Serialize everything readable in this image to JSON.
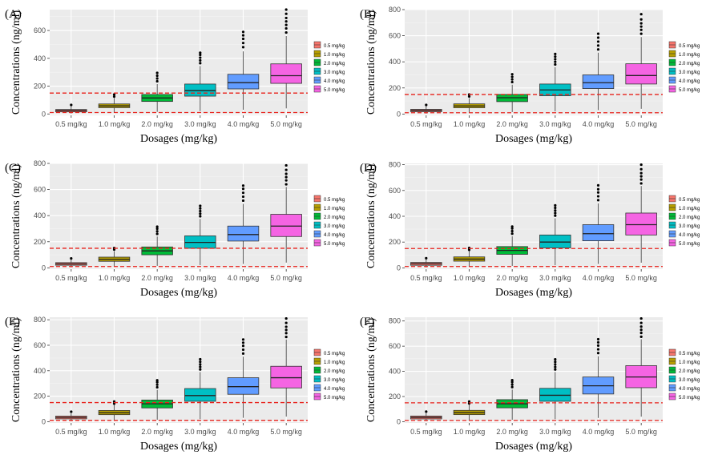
{
  "figure": {
    "colors": {
      "panel_bg": "#ebebeb",
      "grid_major": "#ffffff",
      "grid_minor": "#f4f4f4",
      "ref_line": "#e8211b",
      "axis_text": "#4d4d4d",
      "title_text": "#000000",
      "outlier": "#000000",
      "series": [
        "#f8766d",
        "#b79f00",
        "#00ba38",
        "#00bfc4",
        "#619cff",
        "#f564e3"
      ]
    },
    "legend_position": "right"
  },
  "chart_data": [
    {
      "panel_label": "(A)",
      "type": "boxplot",
      "xlabel": "Dosages (mg/kg)",
      "ylabel": "Concentrations (ng/ml)",
      "categories": [
        "0.5 mg/kg",
        "1.0 mg/kg",
        "2.0 mg/kg",
        "3.0 mg/kg",
        "4.0 mg/kg",
        "5.0 mg/kg"
      ],
      "legend": [
        "0.5 mg/kg",
        "1.0 mg/kg",
        "2.0 mg/kg",
        "3.0 mg/kg",
        "4.0 mg/kg",
        "5.0 mg/kg"
      ],
      "ylim": [
        -10,
        750
      ],
      "yticks": [
        0,
        200,
        400,
        600
      ],
      "reference_lines": [
        10,
        150
      ],
      "boxes": [
        {
          "min": 3,
          "q1": 15,
          "median": 25,
          "q3": 32,
          "max": 55
        },
        {
          "min": 10,
          "q1": 45,
          "median": 58,
          "q3": 72,
          "max": 115
        },
        {
          "min": 15,
          "q1": 90,
          "median": 115,
          "q3": 140,
          "max": 215
        },
        {
          "min": 20,
          "q1": 128,
          "median": 168,
          "q3": 215,
          "max": 345
        },
        {
          "min": 30,
          "q1": 180,
          "median": 225,
          "q3": 285,
          "max": 450
        },
        {
          "min": 40,
          "q1": 220,
          "median": 275,
          "q3": 360,
          "max": 560
        }
      ],
      "outliers": [
        [
          65
        ],
        [
          125,
          140
        ],
        [
          235,
          255,
          275,
          295
        ],
        [
          365,
          385,
          405,
          425,
          440
        ],
        [
          480,
          510,
          540,
          565,
          590
        ],
        [
          585,
          615,
          640,
          665,
          690,
          720,
          750
        ]
      ]
    },
    {
      "panel_label": "(B)",
      "type": "boxplot",
      "xlabel": "Dosages (mg/kg)",
      "ylabel": "Concentrations (ng/ml)",
      "categories": [
        "0.5 mg/kg",
        "1.0 mg/kg",
        "2.0 mg/kg",
        "3.0 mg/kg",
        "4.0 mg/kg",
        "5.0 mg/kg"
      ],
      "legend": [
        "0.5 mg/kg",
        "1.0 mg/kg",
        "2.0 mg/kg",
        "3.0 mg/kg",
        "4.0 mg/kg",
        "5.0 mg/kg"
      ],
      "ylim": [
        -10,
        800
      ],
      "yticks": [
        0,
        200,
        400,
        600,
        800
      ],
      "reference_lines": [
        10,
        150
      ],
      "boxes": [
        {
          "min": 3,
          "q1": 18,
          "median": 28,
          "q3": 36,
          "max": 60
        },
        {
          "min": 10,
          "q1": 48,
          "median": 62,
          "q3": 78,
          "max": 122
        },
        {
          "min": 15,
          "q1": 95,
          "median": 125,
          "q3": 150,
          "max": 225
        },
        {
          "min": 20,
          "q1": 140,
          "median": 185,
          "q3": 230,
          "max": 360
        },
        {
          "min": 30,
          "q1": 195,
          "median": 240,
          "q3": 300,
          "max": 470
        },
        {
          "min": 40,
          "q1": 230,
          "median": 295,
          "q3": 385,
          "max": 590
        }
      ],
      "outliers": [
        [
          70
        ],
        [
          135,
          150
        ],
        [
          245,
          265,
          285,
          305
        ],
        [
          380,
          400,
          420,
          440,
          460
        ],
        [
          495,
          525,
          555,
          585,
          615
        ],
        [
          615,
          645,
          670,
          695,
          725,
          765
        ]
      ]
    },
    {
      "panel_label": "(C)",
      "type": "boxplot",
      "xlabel": "Dosages (mg/kg)",
      "ylabel": "Concentrations (ng/ml)",
      "categories": [
        "0.5 mg/kg",
        "1.0 mg/kg",
        "2.0 mg/kg",
        "3.0 mg/kg",
        "4.0 mg/kg",
        "5.0 mg/kg"
      ],
      "legend": [
        "0.5 mg/kg",
        "1.0 mg/kg",
        "2.0 mg/kg",
        "3.0 mg/kg",
        "4.0 mg/kg",
        "5.0 mg/kg"
      ],
      "ylim": [
        -10,
        800
      ],
      "yticks": [
        0,
        200,
        400,
        600,
        800
      ],
      "reference_lines": [
        10,
        150
      ],
      "boxes": [
        {
          "min": 3,
          "q1": 20,
          "median": 30,
          "q3": 40,
          "max": 62
        },
        {
          "min": 10,
          "q1": 50,
          "median": 65,
          "q3": 82,
          "max": 128
        },
        {
          "min": 15,
          "q1": 100,
          "median": 130,
          "q3": 160,
          "max": 240
        },
        {
          "min": 20,
          "q1": 150,
          "median": 195,
          "q3": 245,
          "max": 375
        },
        {
          "min": 30,
          "q1": 205,
          "median": 255,
          "q3": 320,
          "max": 490
        },
        {
          "min": 40,
          "q1": 240,
          "median": 320,
          "q3": 410,
          "max": 620
        }
      ],
      "outliers": [
        [
          72
        ],
        [
          140,
          152
        ],
        [
          260,
          280,
          300,
          315
        ],
        [
          395,
          415,
          435,
          455,
          475
        ],
        [
          515,
          545,
          575,
          605,
          630
        ],
        [
          640,
          670,
          695,
          720,
          750,
          785
        ]
      ]
    },
    {
      "panel_label": "(D)",
      "type": "boxplot",
      "xlabel": "Dosages (mg/kg)",
      "ylabel": "Concentrations (ng/ml)",
      "categories": [
        "0.5 mg/kg",
        "1.0 mg/kg",
        "2.0 mg/kg",
        "3.0 mg/kg",
        "4.0 mg/kg",
        "5.0 mg/kg"
      ],
      "legend": [
        "0.5 mg/kg",
        "1.0 mg/kg",
        "2.0 mg/kg",
        "3.0 mg/kg",
        "4.0 mg/kg",
        "5.0 mg/kg"
      ],
      "ylim": [
        -10,
        810
      ],
      "yticks": [
        0,
        200,
        400,
        600,
        800
      ],
      "reference_lines": [
        10,
        150
      ],
      "boxes": [
        {
          "min": 3,
          "q1": 20,
          "median": 32,
          "q3": 42,
          "max": 64
        },
        {
          "min": 10,
          "q1": 52,
          "median": 68,
          "q3": 85,
          "max": 130
        },
        {
          "min": 15,
          "q1": 105,
          "median": 135,
          "q3": 165,
          "max": 245
        },
        {
          "min": 20,
          "q1": 155,
          "median": 200,
          "q3": 255,
          "max": 385
        },
        {
          "min": 30,
          "q1": 210,
          "median": 265,
          "q3": 335,
          "max": 500
        },
        {
          "min": 40,
          "q1": 255,
          "median": 335,
          "q3": 425,
          "max": 635
        }
      ],
      "outliers": [
        [
          75
        ],
        [
          140,
          155
        ],
        [
          265,
          285,
          305,
          320
        ],
        [
          405,
          425,
          445,
          465,
          485
        ],
        [
          525,
          555,
          585,
          610,
          640
        ],
        [
          655,
          685,
          710,
          735,
          765,
          800
        ]
      ]
    },
    {
      "panel_label": "(E)",
      "type": "boxplot",
      "xlabel": "Dosages (mg/kg)",
      "ylabel": "Concentrations (ng/ml)",
      "categories": [
        "0.5 mg/kg",
        "1.0 mg/kg",
        "2.0 mg/kg",
        "3.0 mg/kg",
        "4.0 mg/kg",
        "5.0 mg/kg"
      ],
      "legend": [
        "0.5 mg/kg",
        "1.0 mg/kg",
        "2.0 mg/kg",
        "3.0 mg/kg",
        "4.0 mg/kg",
        "5.0 mg/kg"
      ],
      "ylim": [
        -10,
        820
      ],
      "yticks": [
        0,
        200,
        400,
        600,
        800
      ],
      "reference_lines": [
        10,
        150
      ],
      "boxes": [
        {
          "min": 3,
          "q1": 22,
          "median": 33,
          "q3": 44,
          "max": 66
        },
        {
          "min": 10,
          "q1": 55,
          "median": 70,
          "q3": 88,
          "max": 132
        },
        {
          "min": 15,
          "q1": 108,
          "median": 140,
          "q3": 170,
          "max": 250
        },
        {
          "min": 20,
          "q1": 160,
          "median": 205,
          "q3": 260,
          "max": 390
        },
        {
          "min": 30,
          "q1": 215,
          "median": 275,
          "q3": 345,
          "max": 510
        },
        {
          "min": 40,
          "q1": 265,
          "median": 345,
          "q3": 435,
          "max": 645
        }
      ],
      "outliers": [
        [
          78
        ],
        [
          142,
          158
        ],
        [
          270,
          290,
          310,
          325
        ],
        [
          410,
          430,
          450,
          470,
          490
        ],
        [
          535,
          565,
          595,
          620,
          645
        ],
        [
          665,
          695,
          720,
          745,
          775,
          810
        ]
      ]
    },
    {
      "panel_label": "(F)",
      "type": "boxplot",
      "xlabel": "Dosages (mg/kg)",
      "ylabel": "Concentrations (ng/ml)",
      "categories": [
        "0.5 mg/kg",
        "1.0 mg/kg",
        "2.0 mg/kg",
        "3.0 mg/kg",
        "4.0 mg/kg",
        "5.0 mg/kg"
      ],
      "legend": [
        "0.5 mg/kg",
        "1.0 mg/kg",
        "2.0 mg/kg",
        "3.0 mg/kg",
        "4.0 mg/kg",
        "5.0 mg/kg"
      ],
      "ylim": [
        -10,
        830
      ],
      "yticks": [
        0,
        200,
        400,
        600,
        800
      ],
      "reference_lines": [
        10,
        150
      ],
      "boxes": [
        {
          "min": 3,
          "q1": 22,
          "median": 34,
          "q3": 45,
          "max": 68
        },
        {
          "min": 10,
          "q1": 56,
          "median": 72,
          "q3": 90,
          "max": 135
        },
        {
          "min": 15,
          "q1": 110,
          "median": 142,
          "q3": 175,
          "max": 255
        },
        {
          "min": 20,
          "q1": 162,
          "median": 210,
          "q3": 265,
          "max": 395
        },
        {
          "min": 30,
          "q1": 220,
          "median": 285,
          "q3": 355,
          "max": 520
        },
        {
          "min": 40,
          "q1": 270,
          "median": 355,
          "q3": 445,
          "max": 655
        }
      ],
      "outliers": [
        [
          80
        ],
        [
          145,
          160
        ],
        [
          275,
          295,
          315,
          330
        ],
        [
          415,
          435,
          455,
          475,
          495
        ],
        [
          545,
          575,
          605,
          630,
          655
        ],
        [
          675,
          705,
          730,
          755,
          785,
          820
        ]
      ]
    }
  ]
}
